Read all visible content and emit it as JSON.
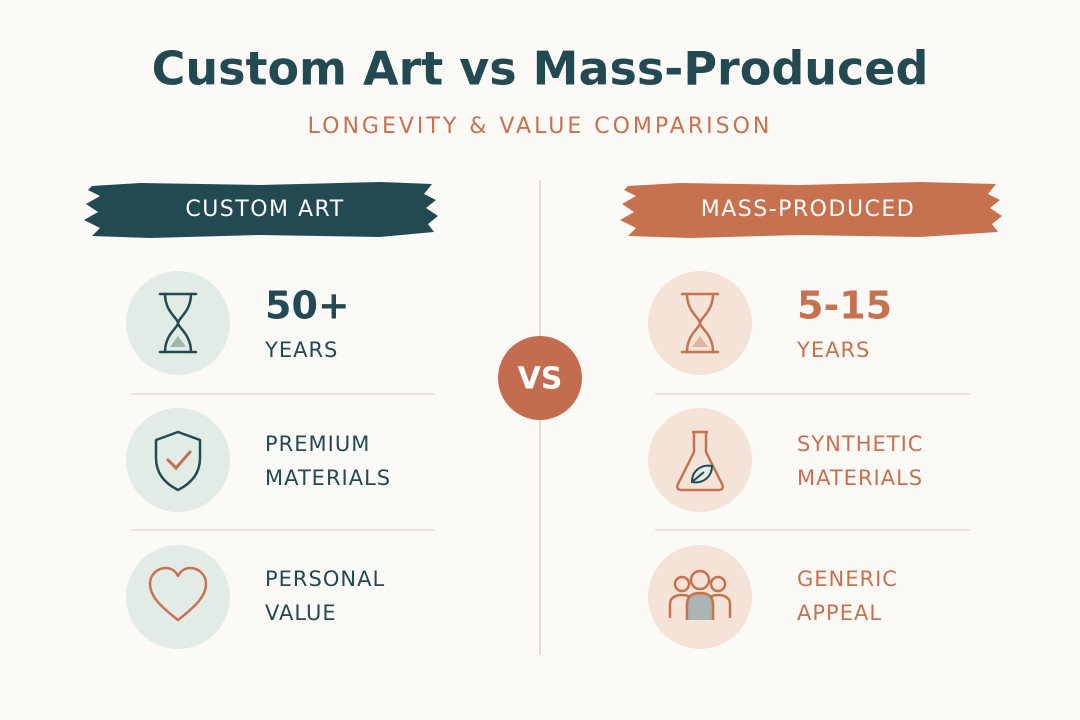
{
  "title": "Custom Art vs Mass-Produced",
  "subtitle": "LONGEVITY & VALUE COMPARISON",
  "vs": "VS",
  "columns": [
    {
      "header": "CUSTOM ART",
      "items": [
        {
          "lines": [
            "50+",
            "YEARS"
          ]
        },
        {
          "lines": [
            "PREMIUM",
            "MATERIALS"
          ]
        },
        {
          "lines": [
            "PERSONAL",
            "VALUE"
          ]
        }
      ]
    },
    {
      "header": "MASS-PRODUCED",
      "items": [
        {
          "lines": [
            "5-15",
            "YEARS"
          ]
        },
        {
          "lines": [
            "SYNTHETIC",
            "MATERIALS"
          ]
        },
        {
          "lines": [
            "GENERIC",
            "APPEAL"
          ]
        }
      ]
    }
  ]
}
